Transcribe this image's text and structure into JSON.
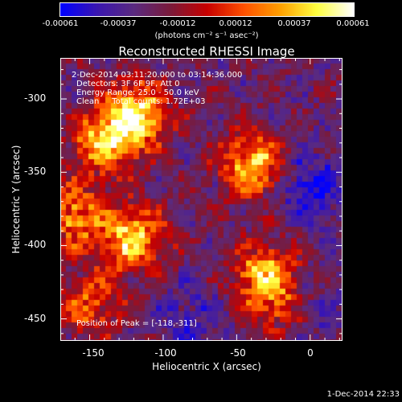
{
  "colorbar": {
    "ticks": [
      "-0.00061",
      "-0.00037",
      "-0.00012",
      "0.00012",
      "0.00037",
      "0.00061"
    ],
    "unit_label": "(photons cm⁻² s⁻¹ asec⁻²)",
    "colormap": [
      "#0000ff",
      "#3a16b0",
      "#5a2a80",
      "#7a1a3a",
      "#c80000",
      "#ff5000",
      "#ffa000",
      "#ffff40",
      "#ffffff"
    ]
  },
  "title": "Reconstructed RHESSI Image",
  "annotations": {
    "time_range": "2-Dec-2014 03:11:20.000 to 03:14:36.000",
    "detectors": "Detectors: 3F 6F 9F, Att 0",
    "energy": "Energy Range: 25.0 - 50.0 keV",
    "clean": "Clean     Total counts: 1.72E+03",
    "peak": "Position of Peak = [-118,-311]"
  },
  "axes": {
    "xlabel": "Heliocentric X (arcsec)",
    "ylabel": "Heliocentric Y (arcsec)",
    "x_ticks": [
      "-150",
      "-100",
      "-50",
      "0"
    ],
    "y_ticks": [
      "-300",
      "-350",
      "-400",
      "-450"
    ],
    "x_tick_values": [
      -150,
      -100,
      -50,
      0
    ],
    "y_tick_values": [
      -300,
      -350,
      -400,
      -450
    ],
    "xlim": [
      -170,
      22
    ],
    "ylim": [
      -465,
      -272
    ]
  },
  "heatmap": {
    "hot_sources_arcsec": [
      {
        "x": -118,
        "y": -311,
        "peak": 1.0
      },
      {
        "x": -140,
        "y": -330,
        "peak": 0.75
      },
      {
        "x": -40,
        "y": -345,
        "peak": 0.85
      },
      {
        "x": -160,
        "y": -380,
        "peak": 0.7
      },
      {
        "x": -120,
        "y": -395,
        "peak": 0.85
      },
      {
        "x": -30,
        "y": -420,
        "peak": 0.75
      },
      {
        "x": -150,
        "y": -440,
        "peak": 0.55
      },
      {
        "x": -20,
        "y": -440,
        "peak": 0.5
      }
    ],
    "cold_sources_arcsec": [
      {
        "x": 0,
        "y": -360,
        "depth": 0.55
      },
      {
        "x": -5,
        "y": -440,
        "depth": 0.45
      },
      {
        "x": -80,
        "y": -450,
        "depth": 0.35
      }
    ]
  },
  "timestamp": "1-Dec-2014 22:33"
}
